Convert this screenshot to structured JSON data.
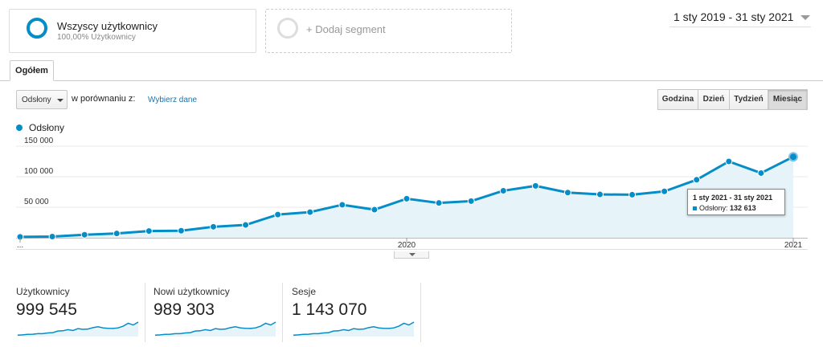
{
  "segments": {
    "active": {
      "title": "Wszyscy użytkownicy",
      "subtitle": "100,00% Użytkownicy"
    },
    "add_label": "+ Dodaj segment"
  },
  "date_range": "1 sty 2019 - 31 sty 2021",
  "tabs": [
    {
      "label": "Ogółem"
    }
  ],
  "controls": {
    "metric_select": "Odsłony",
    "compare_label": "w porównaniu z:",
    "compare_link": "Wybierz dane",
    "granularity": [
      "Godzina",
      "Dzień",
      "Tydzień",
      "Miesiąc"
    ],
    "granularity_active": "Miesiąc"
  },
  "legend": {
    "label": "Odsłony",
    "color": "#058dc7"
  },
  "chart_data": {
    "type": "area",
    "series": [
      {
        "name": "Odsłony",
        "values": [
          1500,
          2000,
          5000,
          7000,
          11000,
          11500,
          18000,
          21000,
          38000,
          42000,
          54000,
          46000,
          64000,
          57000,
          60000,
          77000,
          85000,
          74000,
          71000,
          70500,
          76000,
          95000,
          125000,
          106000,
          132613
        ]
      }
    ],
    "x": [
      "2019-01",
      "2019-02",
      "2019-03",
      "2019-04",
      "2019-05",
      "2019-06",
      "2019-07",
      "2019-08",
      "2019-09",
      "2019-10",
      "2019-11",
      "2019-12",
      "2020-01",
      "2020-02",
      "2020-03",
      "2020-04",
      "2020-05",
      "2020-06",
      "2020-07",
      "2020-08",
      "2020-09",
      "2020-10",
      "2020-11",
      "2020-12",
      "2021-01"
    ],
    "x_tick_labels": [
      "...",
      "2020",
      "2021"
    ],
    "y_tick_labels": [
      "50 000",
      "100 000",
      "150 000"
    ],
    "ylim": [
      0,
      150000
    ],
    "grid": true,
    "tooltip": {
      "title": "1 sty 2021 - 31 sty 2021",
      "label": "Odsłony:",
      "value": "132 613"
    }
  },
  "scorecards": [
    {
      "title": "Użytkownicy",
      "value": "999 545"
    },
    {
      "title": "Nowi użytkownicy",
      "value": "989 303"
    },
    {
      "title": "Sesje",
      "value": "1 143 070"
    }
  ],
  "colors": {
    "accent": "#058dc7",
    "fill": "#e6f4fa",
    "link": "#1a73a8"
  },
  "icons": {
    "segment": "circle-icon",
    "dropdown": "chevron-down-icon"
  }
}
